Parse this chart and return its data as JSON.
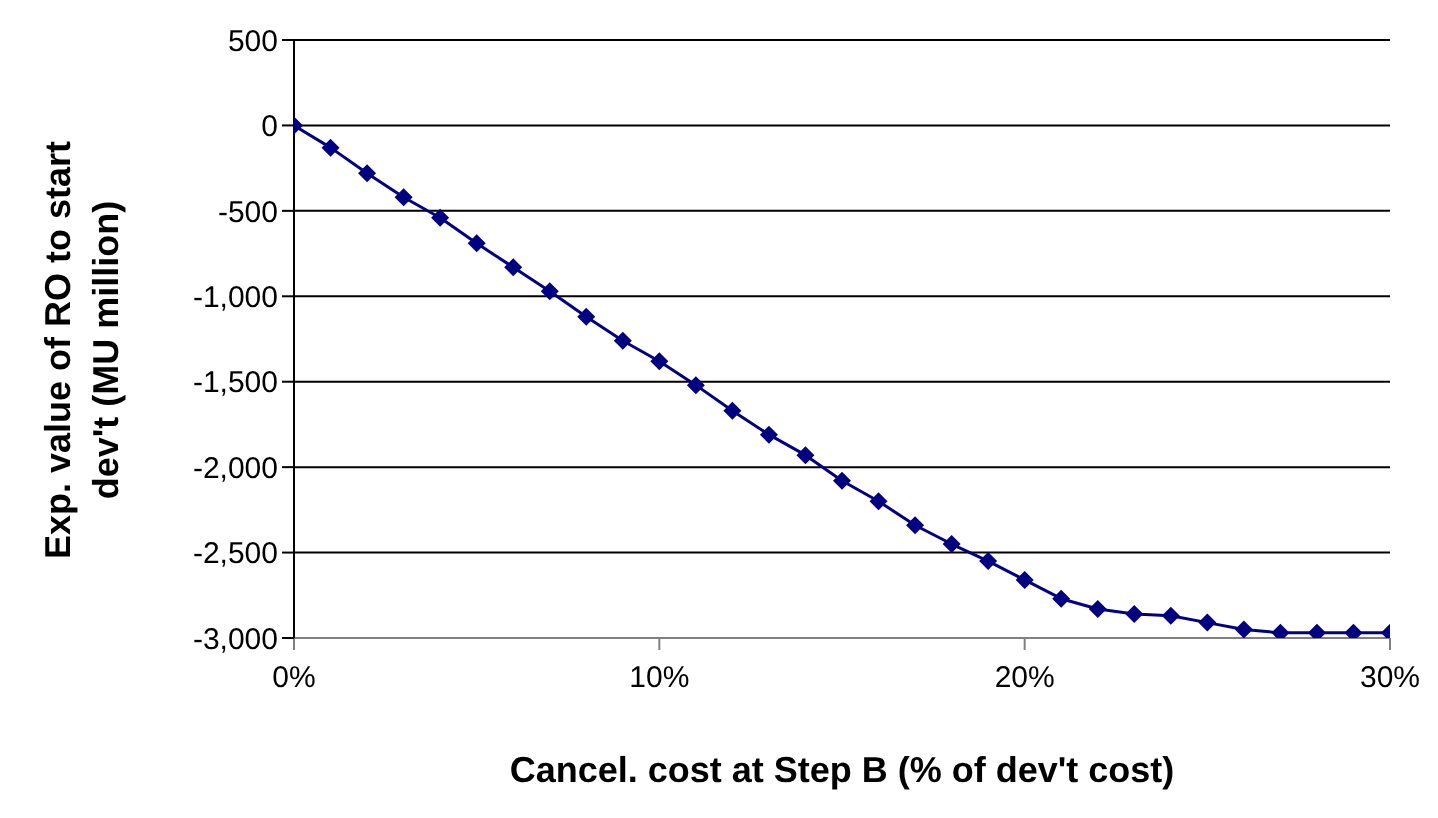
{
  "chart_data": {
    "type": "line",
    "xlabel": "Cancel. cost at Step B (% of dev't cost)",
    "ylabel": "Exp. value of RO to start dev't (MU million)",
    "x": [
      0,
      1,
      2,
      3,
      4,
      5,
      6,
      7,
      8,
      9,
      10,
      11,
      12,
      13,
      14,
      15,
      16,
      17,
      18,
      19,
      20,
      21,
      22,
      23,
      24,
      25,
      26,
      27,
      28,
      29,
      30
    ],
    "series": [
      {
        "color": "#000080",
        "values": [
          0,
          -130,
          -280,
          -420,
          -540,
          -690,
          -830,
          -970,
          -1120,
          -1260,
          -1380,
          -1520,
          -1670,
          -1810,
          -1930,
          -2080,
          -2200,
          -2340,
          -2450,
          -2550,
          -2660,
          -2770,
          -2830,
          -2860,
          -2870,
          -2910,
          -2950,
          -2970,
          -2970,
          -2970,
          -2970
        ]
      }
    ],
    "xlim": [
      0,
      30
    ],
    "xticks": [
      {
        "value": 0,
        "label": "0%"
      },
      {
        "value": 10,
        "label": "10%"
      },
      {
        "value": 20,
        "label": "20%"
      },
      {
        "value": 30,
        "label": "30%"
      }
    ],
    "ylim": [
      -3000,
      500
    ],
    "yticks": [
      {
        "value": -3000,
        "label": "-3,000"
      },
      {
        "value": -2500,
        "label": "-2,500"
      },
      {
        "value": -2000,
        "label": "-2,000"
      },
      {
        "value": -1500,
        "label": "-1,500"
      },
      {
        "value": -1000,
        "label": "-1,000"
      },
      {
        "value": -500,
        "label": "-500"
      },
      {
        "value": 0,
        "label": "0"
      },
      {
        "value": 500,
        "label": "500"
      }
    ],
    "grid": "y",
    "marker": "diamond",
    "line_style": "solid"
  }
}
